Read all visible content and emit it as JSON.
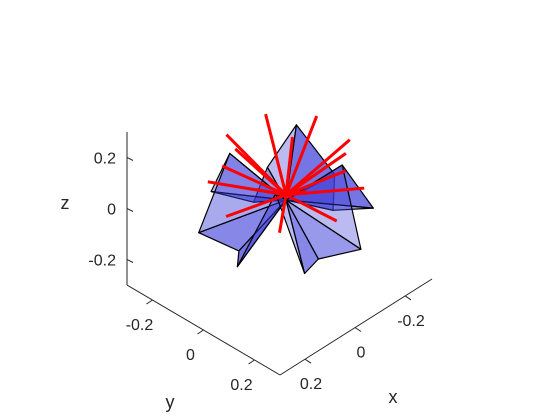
{
  "chart_data": {
    "type": "3d-surface",
    "title": "",
    "xlabel": "x",
    "ylabel": "y",
    "zlabel": "z",
    "xlim": [
      -0.3,
      0.3
    ],
    "ylim": [
      -0.3,
      0.3
    ],
    "zlim": [
      -0.3,
      0.3
    ],
    "x_ticks": [
      -0.2,
      0,
      0.2
    ],
    "x_tick_labels": [
      "-0.2",
      "0",
      "0.2"
    ],
    "y_ticks": [
      -0.2,
      0,
      0.2
    ],
    "y_tick_labels": [
      "-0.2",
      "0",
      "0.2"
    ],
    "z_ticks": [
      -0.2,
      0,
      0.2
    ],
    "z_tick_labels": [
      "-0.2",
      "0",
      "0.2"
    ],
    "grid": false,
    "view": "isometric, looking from +x +y, elevated",
    "colors": {
      "face": "#3b3bd9",
      "edge": "#000000",
      "normal_vector": "#ff0000",
      "axis": "#262626"
    },
    "facets": {
      "count": 16,
      "description": "Radially folded sheet of triangular facets around the origin, alternating up/down folds",
      "rim_radius": 0.25,
      "fold_height": 0.14,
      "rim_vertex_count": 8,
      "fold_vertex_count": 8
    },
    "normals": {
      "count": 16,
      "length": 0.22,
      "color": "red"
    }
  }
}
